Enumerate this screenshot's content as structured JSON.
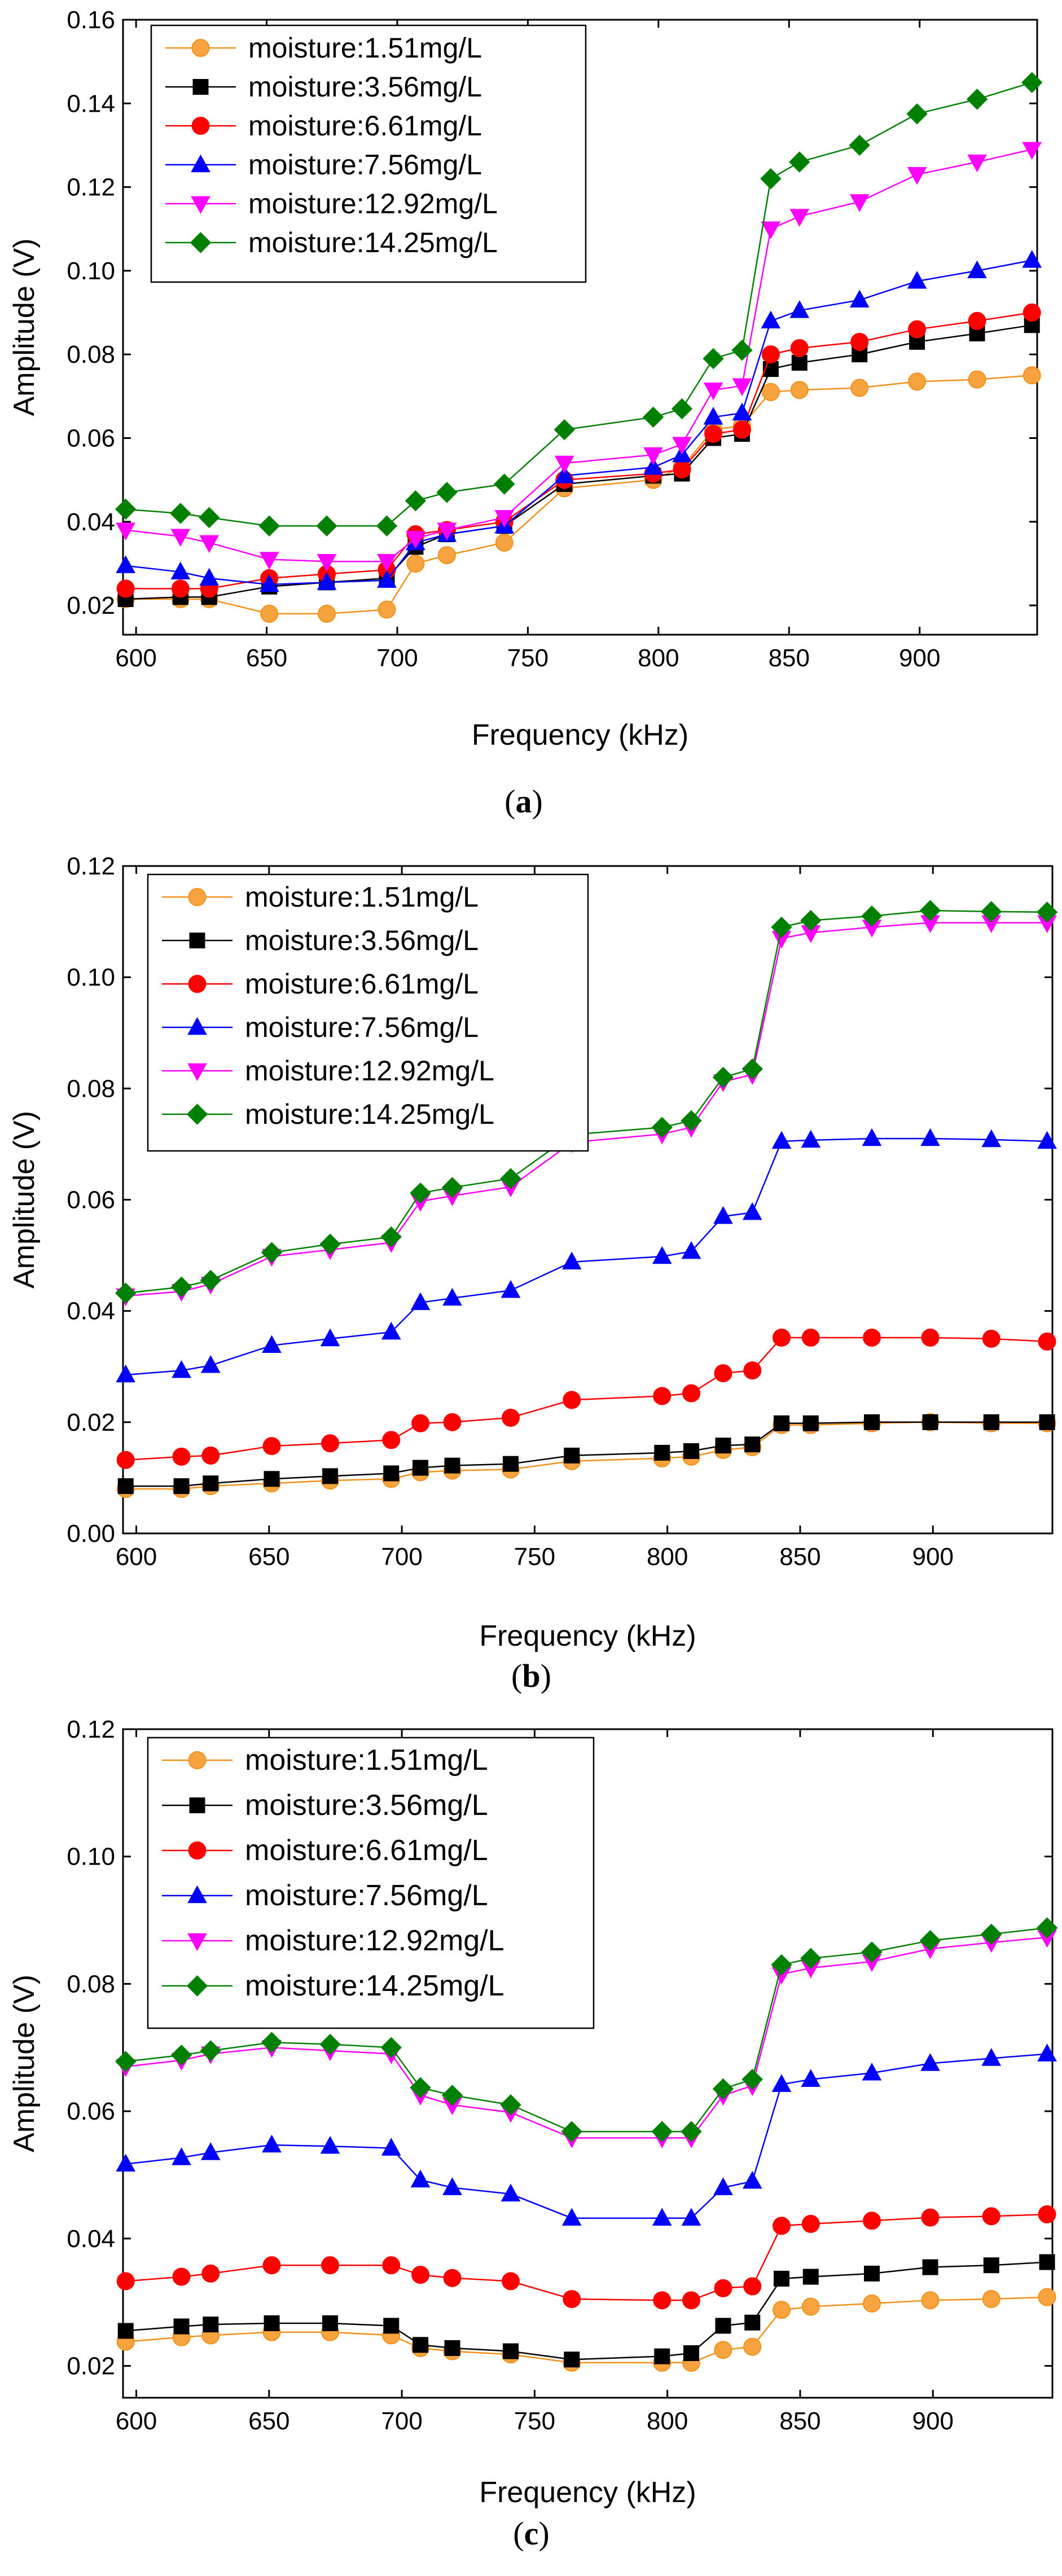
{
  "charts": [
    {
      "caption_letter": "a"
    },
    {
      "caption_letter": "b"
    },
    {
      "caption_letter": "c"
    }
  ],
  "series_styles": [
    {
      "color": "#f39019",
      "fill": "#f7a440",
      "marker": "circle"
    },
    {
      "color": "#000000",
      "fill": "#000000",
      "marker": "square"
    },
    {
      "color": "#ff0000",
      "fill": "#ff0000",
      "marker": "circle"
    },
    {
      "color": "#0000ff",
      "fill": "#0000ff",
      "marker": "triangle-up"
    },
    {
      "color": "#ff00ff",
      "fill": "#ff00ff",
      "marker": "triangle-down"
    },
    {
      "color": "#008000",
      "fill": "#008000",
      "marker": "diamond"
    }
  ],
  "chart_data": [
    {
      "type": "line",
      "xlabel": "Frequency (kHz)",
      "ylabel": "Amplitude (V)",
      "xlim": [
        595,
        945
      ],
      "ylim": [
        0.013,
        0.16
      ],
      "xticks": [
        "600",
        "700",
        "800",
        "900"
      ],
      "xtick_values": [
        600,
        650,
        700,
        750,
        800,
        850,
        900
      ],
      "xtick_labels": [
        "600",
        "650",
        "700",
        "750",
        "800",
        "850",
        "900"
      ],
      "ytick_values": [
        0.02,
        0.04,
        0.06,
        0.08,
        0.1,
        0.12,
        0.14,
        0.16
      ],
      "ytick_labels": [
        "0.02",
        "0.04",
        "0.06",
        "0.08",
        "0.10",
        "0.12",
        "0.14",
        "0.16"
      ],
      "x": [
        596,
        617,
        628,
        651,
        673,
        696,
        707,
        719,
        741,
        764,
        798,
        809,
        821,
        832,
        843,
        854,
        877,
        899,
        922,
        943
      ],
      "series": [
        {
          "name": "moisture:1.51mg/L",
          "values": [
            0.0215,
            0.0215,
            0.0215,
            0.018,
            0.018,
            0.019,
            0.03,
            0.032,
            0.035,
            0.048,
            0.05,
            0.053,
            0.062,
            0.063,
            0.071,
            0.0715,
            0.072,
            0.0735,
            0.074,
            0.075
          ]
        },
        {
          "name": "moisture:3.56mg/L",
          "values": [
            0.0215,
            0.022,
            0.022,
            0.0245,
            0.0255,
            0.0265,
            0.034,
            0.037,
            0.039,
            0.049,
            0.051,
            0.0515,
            0.06,
            0.061,
            0.0765,
            0.078,
            0.08,
            0.083,
            0.085,
            0.087
          ]
        },
        {
          "name": "moisture:6.61mg/L",
          "values": [
            0.024,
            0.024,
            0.024,
            0.0265,
            0.0275,
            0.0285,
            0.037,
            0.038,
            0.04,
            0.05,
            0.0515,
            0.0525,
            0.061,
            0.062,
            0.08,
            0.0815,
            0.083,
            0.086,
            0.088,
            0.09
          ]
        },
        {
          "name": "moisture:7.56mg/L",
          "values": [
            0.0295,
            0.028,
            0.0265,
            0.025,
            0.0255,
            0.026,
            0.035,
            0.037,
            0.039,
            0.051,
            0.053,
            0.056,
            0.065,
            0.066,
            0.088,
            0.0905,
            0.093,
            0.0975,
            0.1,
            0.1025
          ]
        },
        {
          "name": "moisture:12.92mg/L",
          "values": [
            0.038,
            0.0365,
            0.035,
            0.031,
            0.0305,
            0.0305,
            0.036,
            0.038,
            0.041,
            0.054,
            0.056,
            0.0585,
            0.0715,
            0.0725,
            0.11,
            0.113,
            0.1165,
            0.123,
            0.126,
            0.129
          ]
        },
        {
          "name": "moisture:14.25mg/L",
          "values": [
            0.043,
            0.042,
            0.041,
            0.039,
            0.039,
            0.039,
            0.045,
            0.047,
            0.049,
            0.062,
            0.065,
            0.067,
            0.079,
            0.081,
            0.122,
            0.126,
            0.13,
            0.1375,
            0.141,
            0.145
          ]
        }
      ]
    },
    {
      "type": "line",
      "xlabel": "Frequency (kHz)",
      "ylabel": "Amplitude (V)",
      "xlim": [
        595,
        945
      ],
      "ylim": [
        0,
        0.12
      ],
      "xtick_values": [
        600,
        650,
        700,
        750,
        800,
        850,
        900
      ],
      "xtick_labels": [
        "600",
        "650",
        "700",
        "750",
        "800",
        "850",
        "900"
      ],
      "ytick_values": [
        0,
        0.02,
        0.04,
        0.06,
        0.08,
        0.1,
        0.12
      ],
      "ytick_labels": [
        "0.00",
        "0.02",
        "0.04",
        "0.06",
        "0.08",
        "0.10",
        "0.12"
      ],
      "x": [
        596,
        617,
        628,
        651,
        673,
        696,
        707,
        719,
        741,
        764,
        798,
        809,
        821,
        832,
        843,
        854,
        877,
        899,
        922,
        943
      ],
      "series": [
        {
          "name": "moisture:1.51mg/L",
          "values": [
            0.008,
            0.008,
            0.0085,
            0.009,
            0.0095,
            0.0098,
            0.011,
            0.0113,
            0.0115,
            0.013,
            0.0135,
            0.0138,
            0.015,
            0.0155,
            0.0195,
            0.0195,
            0.0198,
            0.02,
            0.0198,
            0.0198
          ]
        },
        {
          "name": "moisture:3.56mg/L",
          "values": [
            0.0085,
            0.0085,
            0.009,
            0.0098,
            0.0103,
            0.0108,
            0.0118,
            0.0122,
            0.0125,
            0.014,
            0.0145,
            0.0148,
            0.0158,
            0.016,
            0.0198,
            0.0198,
            0.02,
            0.02,
            0.02,
            0.02
          ]
        },
        {
          "name": "moisture:6.61mg/L",
          "values": [
            0.0132,
            0.0138,
            0.014,
            0.0157,
            0.0162,
            0.0168,
            0.0198,
            0.02,
            0.0208,
            0.024,
            0.0247,
            0.0252,
            0.0288,
            0.0293,
            0.0352,
            0.0352,
            0.0352,
            0.0352,
            0.035,
            0.0345
          ]
        },
        {
          "name": "moisture:7.56mg/L",
          "values": [
            0.0285,
            0.0293,
            0.0302,
            0.0338,
            0.035,
            0.0362,
            0.0415,
            0.0423,
            0.0437,
            0.0488,
            0.0498,
            0.0507,
            0.057,
            0.0577,
            0.0705,
            0.0707,
            0.071,
            0.071,
            0.0708,
            0.0705
          ]
        },
        {
          "name": "moisture:12.92mg/L",
          "values": [
            0.0427,
            0.0435,
            0.0448,
            0.0498,
            0.051,
            0.0523,
            0.0597,
            0.0607,
            0.0623,
            0.0703,
            0.0718,
            0.073,
            0.0812,
            0.0825,
            0.107,
            0.108,
            0.109,
            0.1098,
            0.1098,
            0.1098
          ]
        },
        {
          "name": "moisture:14.25mg/L",
          "values": [
            0.0432,
            0.0443,
            0.0455,
            0.0505,
            0.052,
            0.0533,
            0.0612,
            0.0622,
            0.0638,
            0.0717,
            0.073,
            0.0742,
            0.082,
            0.0835,
            0.109,
            0.1102,
            0.111,
            0.112,
            0.1118,
            0.1117
          ]
        }
      ]
    },
    {
      "type": "line",
      "xlabel": "Frequency (kHz)",
      "ylabel": "Amplitude (V)",
      "xlim": [
        595,
        945
      ],
      "ylim": [
        0.015,
        0.12
      ],
      "xtick_values": [
        600,
        650,
        700,
        750,
        800,
        850,
        900
      ],
      "xtick_labels": [
        "600",
        "650",
        "700",
        "750",
        "800",
        "850",
        "900"
      ],
      "ytick_values": [
        0.02,
        0.04,
        0.06,
        0.08,
        0.1,
        0.12
      ],
      "ytick_labels": [
        "0.02",
        "0.04",
        "0.06",
        "0.08",
        "0.10",
        "0.12"
      ],
      "x": [
        596,
        617,
        628,
        651,
        673,
        696,
        707,
        719,
        741,
        764,
        798,
        809,
        821,
        832,
        843,
        854,
        877,
        899,
        922,
        943
      ],
      "series": [
        {
          "name": "moisture:1.51mg/L",
          "values": [
            0.0238,
            0.0245,
            0.0248,
            0.0253,
            0.0253,
            0.0248,
            0.0228,
            0.0223,
            0.0218,
            0.0205,
            0.0205,
            0.0205,
            0.0225,
            0.023,
            0.0288,
            0.0293,
            0.0298,
            0.0303,
            0.0305,
            0.0308
          ]
        },
        {
          "name": "moisture:3.56mg/L",
          "values": [
            0.0255,
            0.0262,
            0.0265,
            0.0267,
            0.0267,
            0.0263,
            0.0233,
            0.0228,
            0.0223,
            0.021,
            0.0215,
            0.022,
            0.0263,
            0.0268,
            0.0337,
            0.034,
            0.0345,
            0.0355,
            0.0358,
            0.0363
          ]
        },
        {
          "name": "moisture:6.61mg/L",
          "values": [
            0.0333,
            0.034,
            0.0345,
            0.0358,
            0.0358,
            0.0358,
            0.0343,
            0.0338,
            0.0333,
            0.0305,
            0.0303,
            0.0303,
            0.0322,
            0.0325,
            0.042,
            0.0423,
            0.0428,
            0.0433,
            0.0435,
            0.0438
          ]
        },
        {
          "name": "moisture:7.56mg/L",
          "values": [
            0.0517,
            0.0527,
            0.0535,
            0.0547,
            0.0545,
            0.0542,
            0.0492,
            0.048,
            0.047,
            0.0432,
            0.0432,
            0.0432,
            0.048,
            0.049,
            0.0642,
            0.065,
            0.066,
            0.0675,
            0.0683,
            0.069
          ]
        },
        {
          "name": "moisture:12.92mg/L",
          "values": [
            0.067,
            0.068,
            0.069,
            0.07,
            0.0695,
            0.069,
            0.0625,
            0.061,
            0.0598,
            0.0558,
            0.0558,
            0.0558,
            0.0625,
            0.064,
            0.0815,
            0.0825,
            0.0835,
            0.0855,
            0.0865,
            0.0873
          ]
        },
        {
          "name": "moisture:14.25mg/L",
          "values": [
            0.0678,
            0.0688,
            0.0695,
            0.0708,
            0.0705,
            0.07,
            0.0637,
            0.0625,
            0.061,
            0.0568,
            0.0568,
            0.0568,
            0.0635,
            0.065,
            0.083,
            0.084,
            0.085,
            0.0868,
            0.0878,
            0.0888
          ]
        }
      ]
    }
  ]
}
